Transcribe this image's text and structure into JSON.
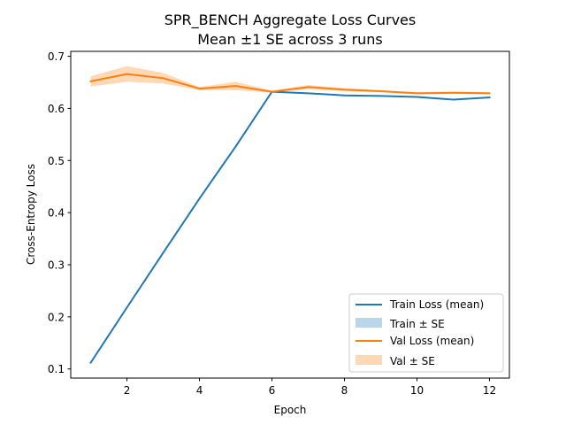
{
  "chart_data": {
    "type": "line",
    "title": "SPR_BENCH Aggregate Loss Curves",
    "subtitle": "Mean ±1 SE across 3 runs",
    "xlabel": "Epoch",
    "ylabel": "Cross-Entropy Loss",
    "xlim": [
      0.45,
      12.55
    ],
    "ylim": [
      0.0825,
      0.7095
    ],
    "xticks": [
      2,
      4,
      6,
      8,
      10,
      12
    ],
    "yticks": [
      0.1,
      0.2,
      0.3,
      0.4,
      0.5,
      0.6,
      0.7
    ],
    "ytick_labels": [
      "0.1",
      "0.2",
      "0.3",
      "0.4",
      "0.5",
      "0.6",
      "0.7"
    ],
    "grid": false,
    "legend_position": "lower-right",
    "x": [
      1,
      2,
      3,
      4,
      5,
      6,
      7,
      8,
      9,
      10,
      11,
      12
    ],
    "series": [
      {
        "name": "Train Loss (mean)",
        "band_name": "Train ± SE",
        "color": "#1f77b4",
        "values": [
          0.112,
          0.218,
          0.323,
          0.427,
          0.527,
          0.632,
          0.629,
          0.625,
          0.624,
          0.622,
          0.617,
          0.621
        ],
        "se": [
          0.0,
          0.0,
          0.0,
          0.0,
          0.0,
          0.0,
          0.0,
          0.0,
          0.0,
          0.0,
          0.0,
          0.0
        ]
      },
      {
        "name": "Val Loss (mean)",
        "band_name": "Val ± SE",
        "color": "#ff7f0e",
        "values": [
          0.652,
          0.666,
          0.658,
          0.638,
          0.643,
          0.632,
          0.641,
          0.636,
          0.633,
          0.629,
          0.63,
          0.629
        ],
        "se": [
          0.01,
          0.015,
          0.01,
          0.003,
          0.008,
          0.002,
          0.004,
          0.003,
          0.002,
          0.002,
          0.002,
          0.002
        ]
      }
    ]
  }
}
